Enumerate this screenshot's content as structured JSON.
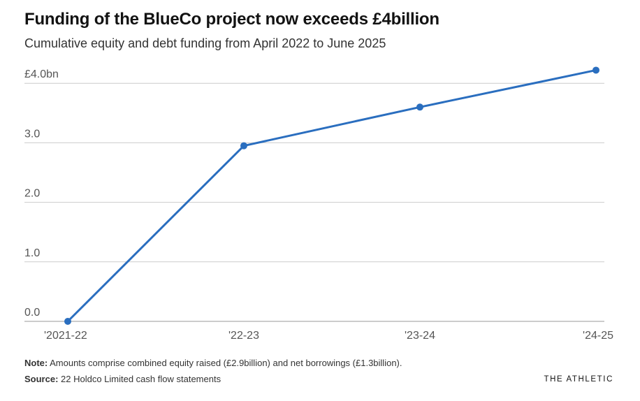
{
  "chart_data": {
    "type": "line",
    "title": "Funding of the BlueCo project now exceeds £4billion",
    "subtitle": "Cumulative equity and debt funding from April 2022 to June 2025",
    "categories": [
      "'2021-22",
      "'22-23",
      "'23-24",
      "'24-25"
    ],
    "values": [
      0.0,
      2.95,
      3.6,
      4.22
    ],
    "yticks": [
      {
        "value": 0,
        "label": "0.0"
      },
      {
        "value": 1,
        "label": "1.0"
      },
      {
        "value": 2,
        "label": "2.0"
      },
      {
        "value": 3,
        "label": "3.0"
      },
      {
        "value": 4,
        "label": "£4.0bn"
      }
    ],
    "ylim": [
      0,
      4.2
    ],
    "xlabel": "",
    "ylabel": "",
    "grid": true,
    "line_color": "#2a6ebf"
  },
  "footer": {
    "note_label": "Note:",
    "note_text": " Amounts comprise combined equity raised (£2.9billion) and net borrowings (£1.3billion).",
    "source_label": "Source:",
    "source_text": " 22 Holdco Limited cash flow statements",
    "brand": "THE ATHLETIC"
  }
}
